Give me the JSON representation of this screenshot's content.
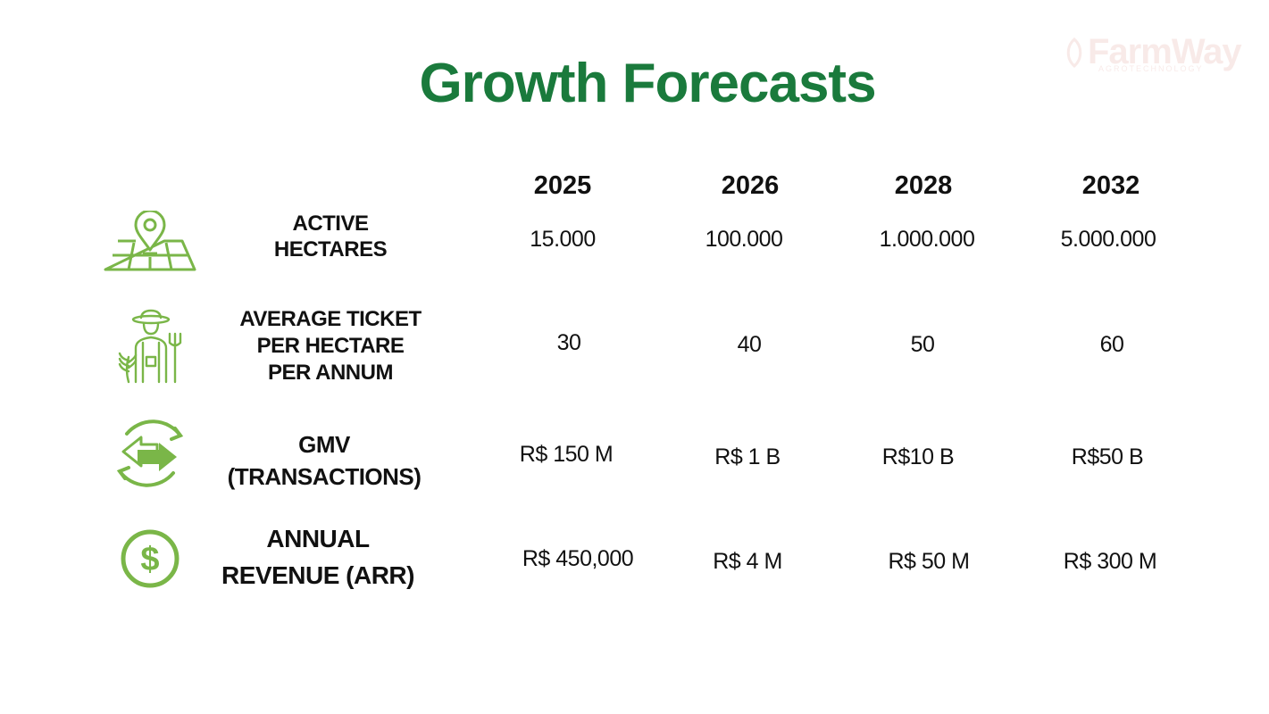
{
  "title": "Growth Forecasts",
  "logo": {
    "name": "FarmWay",
    "tagline": "AGROTECHNOLOGY"
  },
  "colors": {
    "title": "#1a7a3c",
    "icon": "#7ab648",
    "text": "#111111"
  },
  "years": [
    "2025",
    "2026",
    "2028",
    "2032"
  ],
  "rows": [
    {
      "icon": "map-pin-icon",
      "label_lines": [
        "ACTIVE",
        "HECTARES"
      ],
      "values": [
        "15.000",
        "100.000",
        "1.000.000",
        "5.000.000"
      ]
    },
    {
      "icon": "farmer-icon",
      "label_lines": [
        "AVERAGE TICKET",
        "PER HECTARE",
        "PER ANNUM"
      ],
      "values": [
        "30",
        "40",
        "50",
        "60"
      ]
    },
    {
      "icon": "exchange-arrows-icon",
      "label_lines": [
        "GMV",
        "(TRANSACTIONS)"
      ],
      "values": [
        "R$ 150 M",
        "R$ 1 B",
        "R$10 B",
        "R$50 B"
      ]
    },
    {
      "icon": "dollar-icon",
      "label_lines": [
        "ANNUAL",
        "REVENUE (ARR)"
      ],
      "values": [
        "R$ 450,000",
        "R$ 4 M",
        "R$ 50 M",
        "R$ 300 M"
      ]
    }
  ]
}
